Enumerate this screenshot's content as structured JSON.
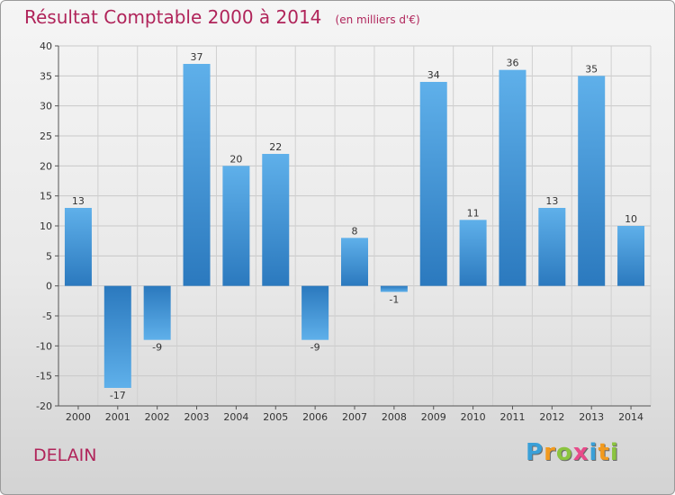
{
  "title": "Résultat Comptable 2000 à 2014",
  "subtitle": "(en milliers d'€)",
  "city": "DELAIN",
  "brand": {
    "letters": [
      "P",
      "r",
      "o",
      "x",
      "i",
      "t",
      "i"
    ],
    "colors": [
      "#3aa0d8",
      "#f29a1e",
      "#8bc43f",
      "#e84b8a",
      "#3aa0d8",
      "#f29a1e",
      "#8bc43f"
    ]
  },
  "colors": {
    "bar_top": "#5fb0ea",
    "bar_bottom": "#2b79be",
    "title": "#b0245a"
  },
  "chart_data": {
    "type": "bar",
    "title": "Résultat Comptable 2000 à 2014",
    "subtitle": "(en milliers d'€)",
    "xlabel": "",
    "ylabel": "",
    "categories": [
      "2000",
      "2001",
      "2002",
      "2003",
      "2004",
      "2005",
      "2006",
      "2007",
      "2008",
      "2009",
      "2010",
      "2011",
      "2012",
      "2013",
      "2014"
    ],
    "values": [
      13,
      -17,
      -9,
      37,
      20,
      22,
      -9,
      8,
      -1,
      34,
      11,
      36,
      13,
      35,
      10
    ],
    "value_labels": [
      "13",
      "-17",
      "-9",
      "37",
      "20",
      "22",
      "-9",
      "8",
      "-1",
      "34",
      "11",
      "36",
      "13",
      "35",
      "10"
    ],
    "ylim": [
      -20,
      40
    ],
    "yticks": [
      -20,
      -15,
      -10,
      -5,
      0,
      5,
      10,
      15,
      20,
      25,
      30,
      35,
      40
    ],
    "grid": true
  }
}
